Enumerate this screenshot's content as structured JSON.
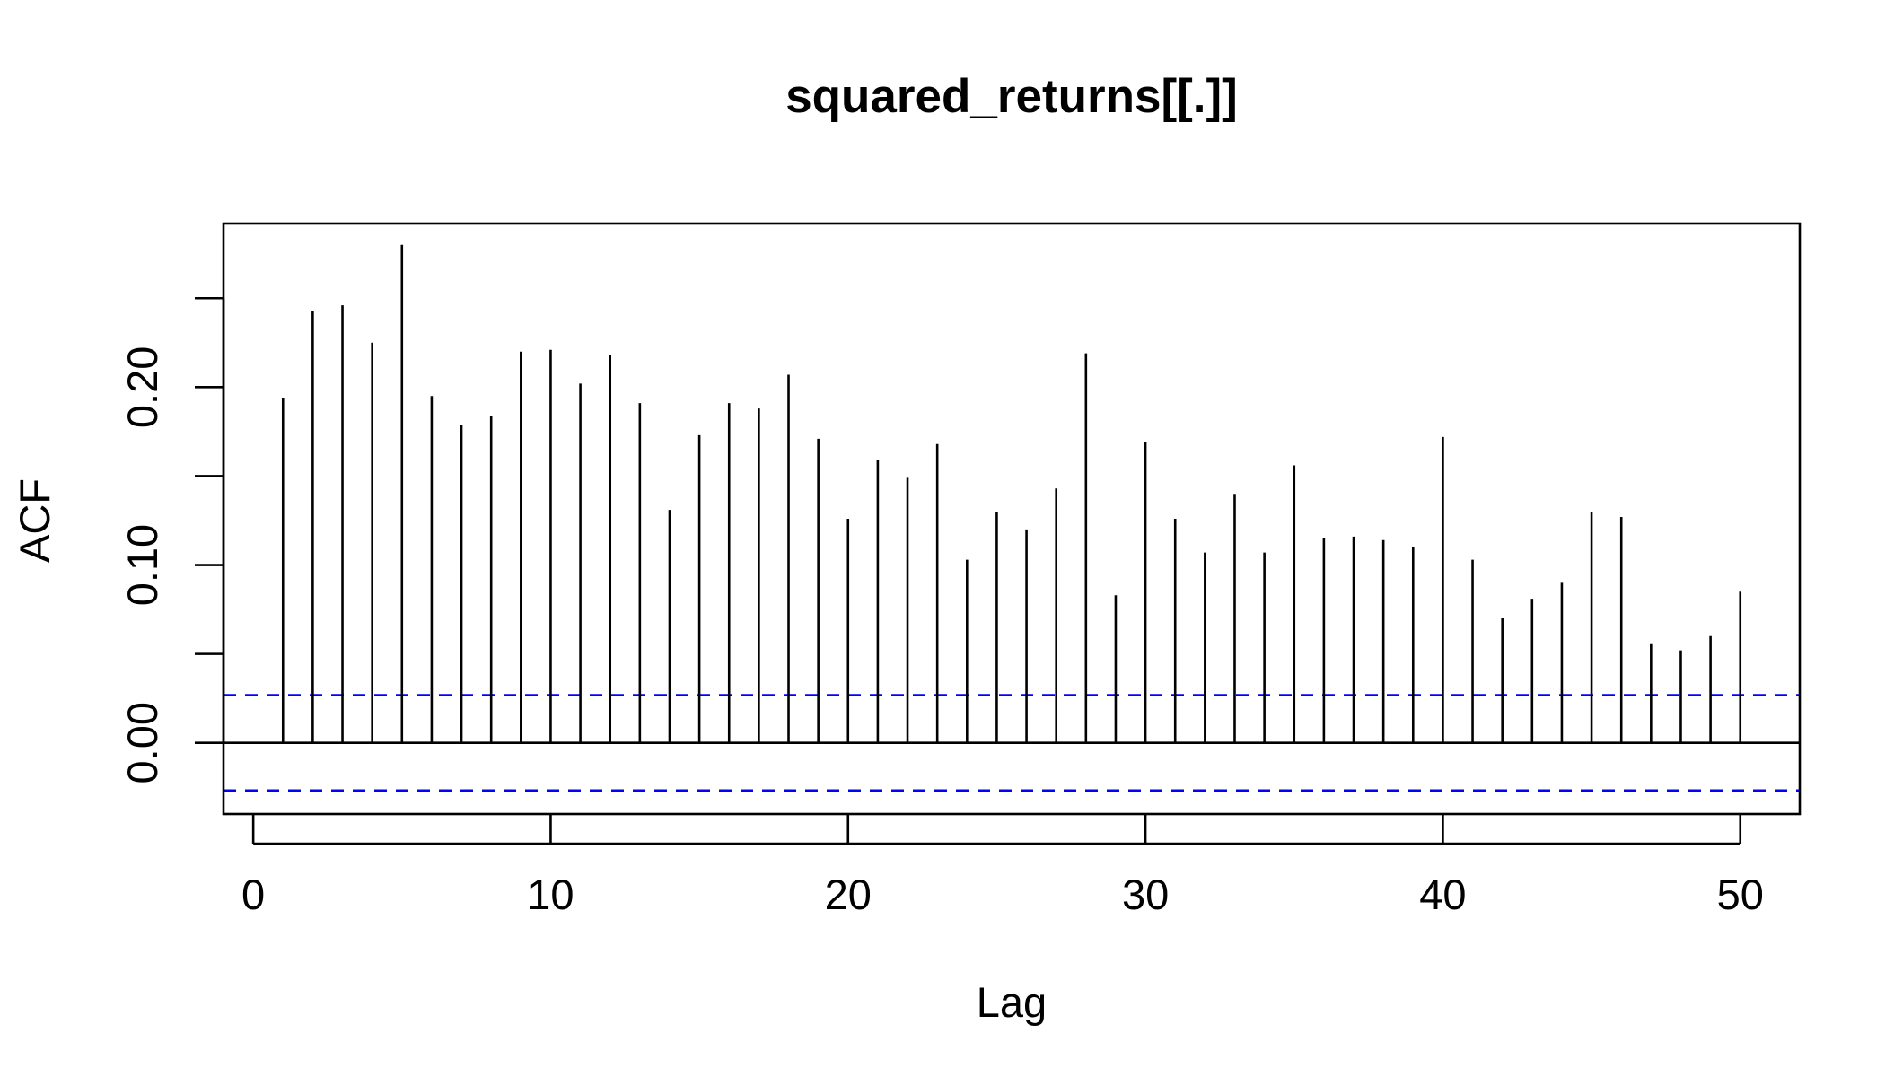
{
  "chart_data": {
    "type": "bar",
    "title": "squared_returns[[.]]",
    "xlabel": "Lag",
    "ylabel": "ACF",
    "xlim": [
      -1,
      52
    ],
    "ylim": [
      -0.04,
      0.292
    ],
    "xticks": [
      0,
      10,
      20,
      30,
      40,
      50
    ],
    "xtick_labels": [
      "0",
      "10",
      "20",
      "30",
      "40",
      "50"
    ],
    "yticks": [
      0.0,
      0.05,
      0.1,
      0.15,
      0.2,
      0.25
    ],
    "ytick_labels": [
      "0.00",
      "",
      "0.10",
      "",
      "0.20",
      ""
    ],
    "confidence_bound": 0.0268,
    "confidence_color": "#0000ff",
    "series": [
      {
        "x": [
          1,
          2,
          3,
          4,
          5,
          6,
          7,
          8,
          9,
          10,
          11,
          12,
          13,
          14,
          15,
          16,
          17,
          18,
          19,
          20,
          21,
          22,
          23,
          24,
          25,
          26,
          27,
          28,
          29,
          30,
          31,
          32,
          33,
          34,
          35,
          36,
          37,
          38,
          39,
          40,
          41,
          42,
          43,
          44,
          45,
          46,
          47,
          48,
          49,
          50
        ],
        "values": [
          0.194,
          0.243,
          0.246,
          0.225,
          0.28,
          0.195,
          0.179,
          0.184,
          0.22,
          0.221,
          0.202,
          0.218,
          0.191,
          0.131,
          0.173,
          0.191,
          0.188,
          0.207,
          0.171,
          0.126,
          0.159,
          0.149,
          0.168,
          0.103,
          0.13,
          0.12,
          0.143,
          0.219,
          0.083,
          0.169,
          0.126,
          0.107,
          0.14,
          0.107,
          0.156,
          0.115,
          0.116,
          0.114,
          0.11,
          0.172,
          0.103,
          0.07,
          0.081,
          0.09,
          0.13,
          0.127,
          0.056,
          0.052,
          0.06,
          0.085
        ]
      }
    ]
  }
}
